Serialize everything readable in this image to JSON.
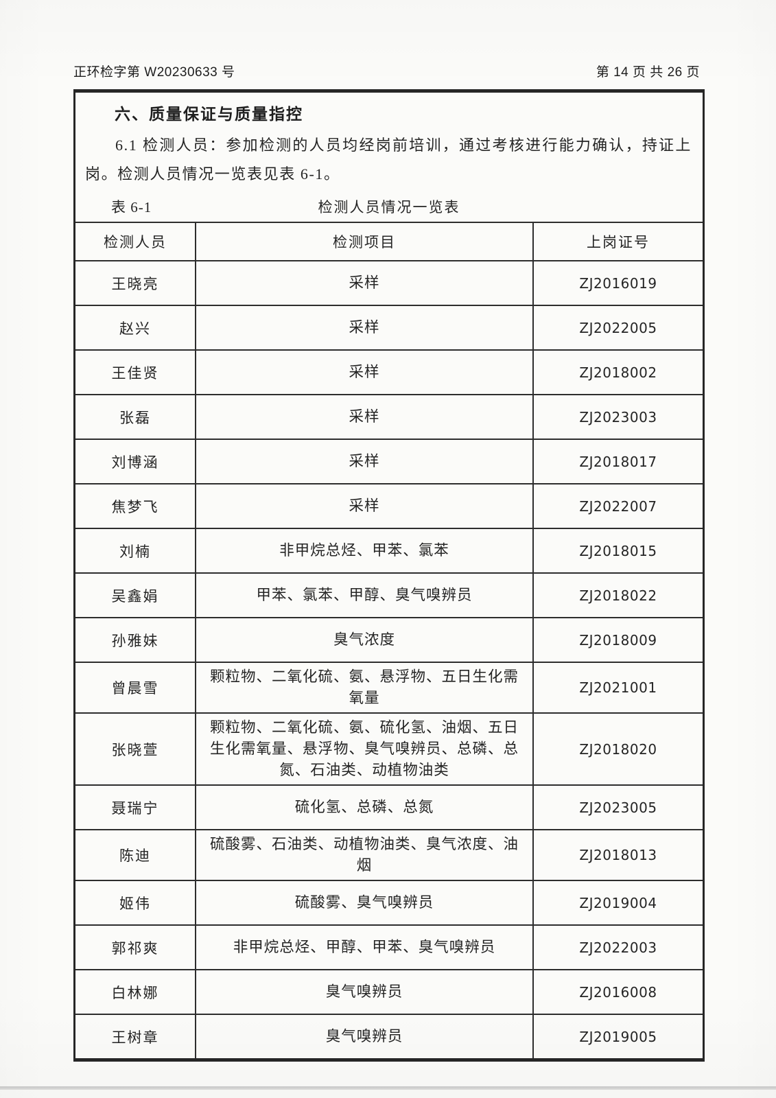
{
  "page": {
    "doc_number": "正环检字第 W20230633 号",
    "page_indicator": "第 14 页  共 26 页"
  },
  "section": {
    "title": "六、质量保证与质量指控",
    "paragraph": "6.1 检测人员：参加检测的人员均经岗前培训，通过考核进行能力确认，持证上岗。检测人员情况一览表见表 6-1。"
  },
  "table": {
    "caption_label": "表 6-1",
    "caption_title": "检测人员情况一览表",
    "columns": [
      "检测人员",
      "检测项目",
      "上岗证号"
    ],
    "rows": [
      {
        "name": "王晓亮",
        "items": "采样",
        "cert": "ZJ2016019"
      },
      {
        "name": "赵兴",
        "items": "采样",
        "cert": "ZJ2022005"
      },
      {
        "name": "王佳贤",
        "items": "采样",
        "cert": "ZJ2018002"
      },
      {
        "name": "张磊",
        "items": "采样",
        "cert": "ZJ2023003"
      },
      {
        "name": "刘博涵",
        "items": "采样",
        "cert": "ZJ2018017"
      },
      {
        "name": "焦梦飞",
        "items": "采样",
        "cert": "ZJ2022007"
      },
      {
        "name": "刘楠",
        "items": "非甲烷总烃、甲苯、氯苯",
        "cert": "ZJ2018015"
      },
      {
        "name": "吴鑫娟",
        "items": "甲苯、氯苯、甲醇、臭气嗅辨员",
        "cert": "ZJ2018022"
      },
      {
        "name": "孙雅妹",
        "items": "臭气浓度",
        "cert": "ZJ2018009"
      },
      {
        "name": "曾晨雪",
        "items": "颗粒物、二氧化硫、氨、悬浮物、五日生化需氧量",
        "cert": "ZJ2021001"
      },
      {
        "name": "张晓萱",
        "items": "颗粒物、二氧化硫、氨、硫化氢、油烟、五日生化需氧量、悬浮物、臭气嗅辨员、总磷、总氮、石油类、动植物油类",
        "cert": "ZJ2018020"
      },
      {
        "name": "聂瑞宁",
        "items": "硫化氢、总磷、总氮",
        "cert": "ZJ2023005"
      },
      {
        "name": "陈迪",
        "items": "硫酸雾、石油类、动植物油类、臭气浓度、油烟",
        "cert": "ZJ2018013"
      },
      {
        "name": "姬伟",
        "items": "硫酸雾、臭气嗅辨员",
        "cert": "ZJ2019004"
      },
      {
        "name": "郭祁爽",
        "items": "非甲烷总烃、甲醇、甲苯、臭气嗅辨员",
        "cert": "ZJ2022003"
      },
      {
        "name": "白林娜",
        "items": "臭气嗅辨员",
        "cert": "ZJ2016008"
      },
      {
        "name": "王树章",
        "items": "臭气嗅辨员",
        "cert": "ZJ2019005"
      }
    ]
  }
}
